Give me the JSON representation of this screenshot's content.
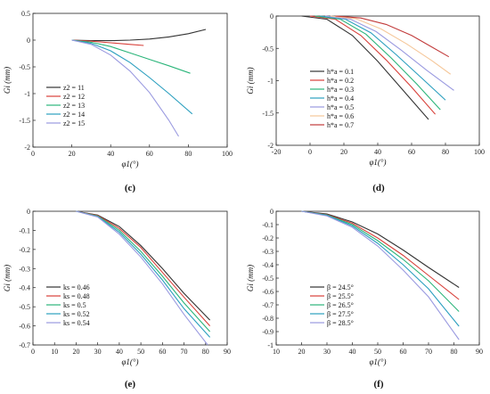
{
  "chart_data": [
    {
      "panel": "(c)",
      "type": "line",
      "xlabel": "φ1(°)",
      "ylabel": "Gi (mm)",
      "xlim": [
        0,
        100
      ],
      "ylim": [
        -2,
        0.5
      ],
      "xticks": [
        0,
        20,
        40,
        60,
        80,
        100
      ],
      "yticks": [
        0.5,
        0,
        -0.5,
        -1,
        -1.5,
        -2
      ],
      "legend_position": "bottom-left",
      "series": [
        {
          "name": "z2 = 11",
          "color": "#333333",
          "x": [
            20,
            30,
            40,
            50,
            60,
            70,
            80,
            89
          ],
          "y": [
            0,
            -0.01,
            -0.01,
            0,
            0.02,
            0.06,
            0.12,
            0.2
          ]
        },
        {
          "name": "z2 = 12",
          "color": "#d8403a",
          "x": [
            20,
            30,
            40,
            50,
            57
          ],
          "y": [
            0,
            -0.02,
            -0.05,
            -0.08,
            -0.1
          ]
        },
        {
          "name": "z2 = 13",
          "color": "#2bb57a",
          "x": [
            20,
            30,
            40,
            50,
            60,
            70,
            81
          ],
          "y": [
            0,
            -0.04,
            -0.12,
            -0.24,
            -0.36,
            -0.48,
            -0.62
          ]
        },
        {
          "name": "z2 = 14",
          "color": "#2b9fbf",
          "x": [
            20,
            30,
            40,
            50,
            60,
            70,
            82
          ],
          "y": [
            0,
            -0.06,
            -0.2,
            -0.42,
            -0.7,
            -1.0,
            -1.38
          ]
        },
        {
          "name": "z2 = 15",
          "color": "#9a9ae0",
          "x": [
            20,
            30,
            40,
            50,
            60,
            70,
            75
          ],
          "y": [
            0,
            -0.08,
            -0.28,
            -0.58,
            -0.98,
            -1.5,
            -1.8
          ]
        }
      ]
    },
    {
      "panel": "(d)",
      "type": "line",
      "xlabel": "φ1(°)",
      "ylabel": "Gi (mm)",
      "xlim": [
        -20,
        100
      ],
      "ylim": [
        -2,
        0
      ],
      "xticks": [
        -20,
        0,
        20,
        40,
        60,
        80,
        100
      ],
      "yticks": [
        0,
        -0.5,
        -1,
        -1.5,
        -2
      ],
      "legend_position": "top-left",
      "series": [
        {
          "name": "h*a = 0.1",
          "color": "#333333",
          "x": [
            -5,
            10,
            25,
            40,
            55,
            70
          ],
          "y": [
            0,
            -0.05,
            -0.3,
            -0.7,
            -1.15,
            -1.6
          ]
        },
        {
          "name": "h*a = 0.2",
          "color": "#d8403a",
          "x": [
            0,
            15,
            30,
            45,
            60,
            74
          ],
          "y": [
            0,
            -0.05,
            -0.3,
            -0.68,
            -1.1,
            -1.52
          ]
        },
        {
          "name": "h*a = 0.3",
          "color": "#2bb57a",
          "x": [
            3,
            18,
            33,
            48,
            63,
            77
          ],
          "y": [
            0,
            -0.05,
            -0.28,
            -0.65,
            -1.05,
            -1.45
          ]
        },
        {
          "name": "h*a = 0.4",
          "color": "#2b9fbf",
          "x": [
            6,
            21,
            36,
            51,
            66,
            80
          ],
          "y": [
            0,
            -0.05,
            -0.26,
            -0.6,
            -0.96,
            -1.3
          ]
        },
        {
          "name": "h*a = 0.5",
          "color": "#9a9ae0",
          "x": [
            9,
            24,
            39,
            54,
            69,
            85
          ],
          "y": [
            0,
            -0.05,
            -0.24,
            -0.53,
            -0.84,
            -1.15
          ]
        },
        {
          "name": "h*a = 0.6",
          "color": "#f5c79a",
          "x": [
            12,
            27,
            42,
            57,
            72,
            83
          ],
          "y": [
            0,
            -0.04,
            -0.2,
            -0.43,
            -0.69,
            -0.9
          ]
        },
        {
          "name": "h*a = 0.7",
          "color": "#c23b3b",
          "x": [
            15,
            30,
            45,
            60,
            70,
            82
          ],
          "y": [
            0,
            -0.03,
            -0.13,
            -0.3,
            -0.45,
            -0.63
          ]
        }
      ]
    },
    {
      "panel": "(e)",
      "type": "line",
      "xlabel": "φ1(°)",
      "ylabel": "Gi (mm)",
      "xlim": [
        0,
        90
      ],
      "ylim": [
        -0.7,
        0
      ],
      "xticks": [
        0,
        10,
        20,
        30,
        40,
        50,
        60,
        70,
        80,
        90
      ],
      "yticks": [
        0,
        -0.1,
        -0.2,
        -0.3,
        -0.4,
        -0.5,
        -0.6,
        -0.7
      ],
      "legend_position": "bottom-left",
      "series": [
        {
          "name": "ks = 0.46",
          "color": "#333333",
          "x": [
            20,
            30,
            40,
            50,
            60,
            70,
            82
          ],
          "y": [
            0,
            -0.02,
            -0.08,
            -0.18,
            -0.3,
            -0.43,
            -0.57
          ]
        },
        {
          "name": "ks = 0.48",
          "color": "#d8403a",
          "x": [
            20,
            30,
            40,
            50,
            60,
            70,
            82
          ],
          "y": [
            0,
            -0.022,
            -0.09,
            -0.19,
            -0.32,
            -0.45,
            -0.6
          ]
        },
        {
          "name": "ks = 0.5",
          "color": "#2bb57a",
          "x": [
            20,
            30,
            40,
            50,
            60,
            70,
            82
          ],
          "y": [
            0,
            -0.025,
            -0.1,
            -0.21,
            -0.34,
            -0.48,
            -0.63
          ]
        },
        {
          "name": "ks = 0.52",
          "color": "#2b9fbf",
          "x": [
            20,
            30,
            40,
            50,
            60,
            70,
            82
          ],
          "y": [
            0,
            -0.028,
            -0.11,
            -0.225,
            -0.36,
            -0.51,
            -0.66
          ]
        },
        {
          "name": "ks = 0.54",
          "color": "#9a9ae0",
          "x": [
            20,
            30,
            40,
            50,
            60,
            70,
            81
          ],
          "y": [
            0,
            -0.03,
            -0.12,
            -0.24,
            -0.38,
            -0.54,
            -0.7
          ]
        }
      ]
    },
    {
      "panel": "(f)",
      "type": "line",
      "xlabel": "φ1(°)",
      "ylabel": "Gi (mm)",
      "xlim": [
        10,
        90
      ],
      "ylim": [
        -1,
        0
      ],
      "xticks": [
        10,
        20,
        30,
        40,
        50,
        60,
        70,
        80,
        90
      ],
      "yticks": [
        0,
        -0.1,
        -0.2,
        -0.3,
        -0.4,
        -0.5,
        -0.6,
        -0.7,
        -0.8,
        -0.9,
        -1
      ],
      "legend_position": "bottom-left",
      "series": [
        {
          "name": "β = 24.5°",
          "color": "#333333",
          "x": [
            20,
            30,
            40,
            50,
            60,
            70,
            82
          ],
          "y": [
            0,
            -0.02,
            -0.08,
            -0.17,
            -0.29,
            -0.42,
            -0.57
          ]
        },
        {
          "name": "β = 25.5°",
          "color": "#d8403a",
          "x": [
            20,
            30,
            40,
            50,
            60,
            70,
            82
          ],
          "y": [
            0,
            -0.025,
            -0.09,
            -0.2,
            -0.33,
            -0.48,
            -0.66
          ]
        },
        {
          "name": "β = 26.5°",
          "color": "#2bb57a",
          "x": [
            20,
            30,
            40,
            50,
            60,
            70,
            82
          ],
          "y": [
            0,
            -0.028,
            -0.1,
            -0.22,
            -0.36,
            -0.52,
            -0.75
          ]
        },
        {
          "name": "β = 27.5°",
          "color": "#2b9fbf",
          "x": [
            20,
            30,
            40,
            50,
            60,
            70,
            82
          ],
          "y": [
            0,
            -0.03,
            -0.11,
            -0.24,
            -0.4,
            -0.58,
            -0.86
          ]
        },
        {
          "name": "β = 28.5°",
          "color": "#9a9ae0",
          "x": [
            20,
            30,
            40,
            50,
            60,
            70,
            82
          ],
          "y": [
            0,
            -0.035,
            -0.12,
            -0.26,
            -0.44,
            -0.64,
            -0.96
          ]
        }
      ]
    }
  ]
}
